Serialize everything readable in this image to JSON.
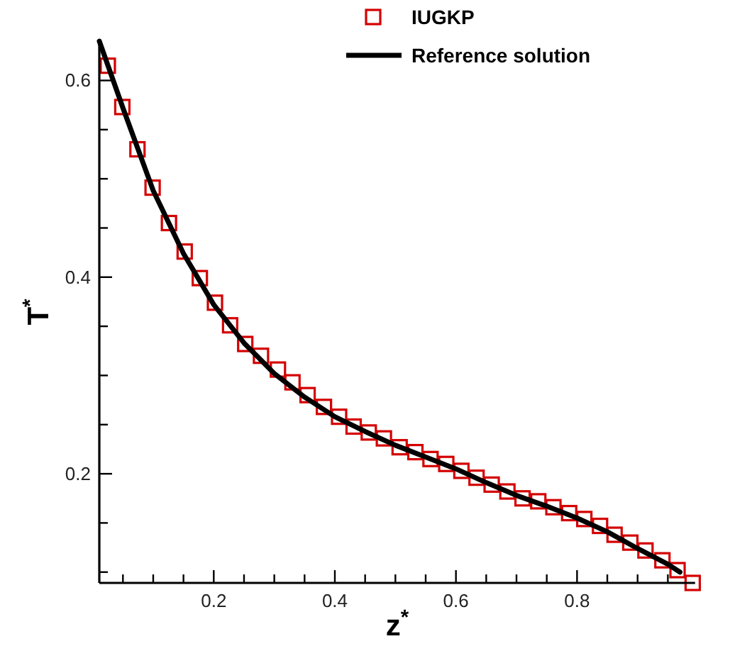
{
  "chart_data": {
    "type": "line",
    "xlabel": "z$^{*}$",
    "ylabel": "T$^{*}$",
    "xlim": [
      0.011,
      0.995
    ],
    "ylim": [
      0.089,
      0.64
    ],
    "xticks": [
      {
        "value": 0.05,
        "label": null
      },
      {
        "value": 0.1,
        "label": null
      },
      {
        "value": 0.15,
        "label": null
      },
      0.2,
      {
        "value": 0.25,
        "label": null
      },
      {
        "value": 0.3,
        "label": null
      },
      {
        "value": 0.35,
        "label": null
      },
      0.4,
      {
        "value": 0.45,
        "label": null
      },
      {
        "value": 0.5,
        "label": null
      },
      {
        "value": 0.55,
        "label": null
      },
      0.6,
      {
        "value": 0.65,
        "label": null
      },
      {
        "value": 0.7,
        "label": null
      },
      {
        "value": 0.75,
        "label": null
      },
      0.8,
      {
        "value": 0.85,
        "label": null
      },
      {
        "value": 0.9,
        "label": null
      },
      {
        "value": 0.95,
        "label": null
      }
    ],
    "yticks": [
      {
        "value": 0.1,
        "label": null
      },
      {
        "value": 0.15,
        "label": null
      },
      0.2,
      {
        "value": 0.25,
        "label": null
      },
      {
        "value": 0.3,
        "label": null
      },
      {
        "value": 0.35,
        "label": null
      },
      0.4,
      {
        "value": 0.45,
        "label": null
      },
      {
        "value": 0.5,
        "label": null
      },
      {
        "value": 0.55,
        "label": null
      },
      0.6
    ],
    "legend": "top right",
    "series": [
      {
        "name": "IUGKP",
        "type": "scatter",
        "marker": "square",
        "color": "#d40000",
        "x": [
          0.025,
          0.049,
          0.074,
          0.099,
          0.126,
          0.152,
          0.177,
          0.202,
          0.227,
          0.252,
          0.278,
          0.306,
          0.33,
          0.355,
          0.382,
          0.407,
          0.431,
          0.456,
          0.481,
          0.507,
          0.533,
          0.558,
          0.584,
          0.609,
          0.634,
          0.659,
          0.685,
          0.71,
          0.736,
          0.761,
          0.787,
          0.812,
          0.838,
          0.862,
          0.888,
          0.913,
          0.941,
          0.966,
          0.991
        ],
        "values": [
          0.615,
          0.573,
          0.53,
          0.491,
          0.455,
          0.426,
          0.399,
          0.374,
          0.351,
          0.332,
          0.32,
          0.306,
          0.293,
          0.28,
          0.268,
          0.258,
          0.248,
          0.242,
          0.236,
          0.227,
          0.222,
          0.215,
          0.21,
          0.203,
          0.196,
          0.189,
          0.182,
          0.175,
          0.172,
          0.166,
          0.16,
          0.154,
          0.147,
          0.138,
          0.13,
          0.122,
          0.112,
          0.102,
          0.089
        ]
      },
      {
        "name": "Reference solution",
        "marker": "none",
        "line_style": "solid",
        "color": "#000000",
        "x": [
          0.011,
          0.05,
          0.1,
          0.15,
          0.2,
          0.25,
          0.3,
          0.35,
          0.4,
          0.45,
          0.5,
          0.55,
          0.6,
          0.65,
          0.7,
          0.75,
          0.8,
          0.85,
          0.9,
          0.95,
          0.97
        ],
        "values": [
          0.64,
          0.572,
          0.488,
          0.424,
          0.372,
          0.333,
          0.302,
          0.278,
          0.258,
          0.243,
          0.229,
          0.217,
          0.205,
          0.191,
          0.178,
          0.167,
          0.155,
          0.141,
          0.124,
          0.108,
          0.1
        ]
      }
    ]
  }
}
